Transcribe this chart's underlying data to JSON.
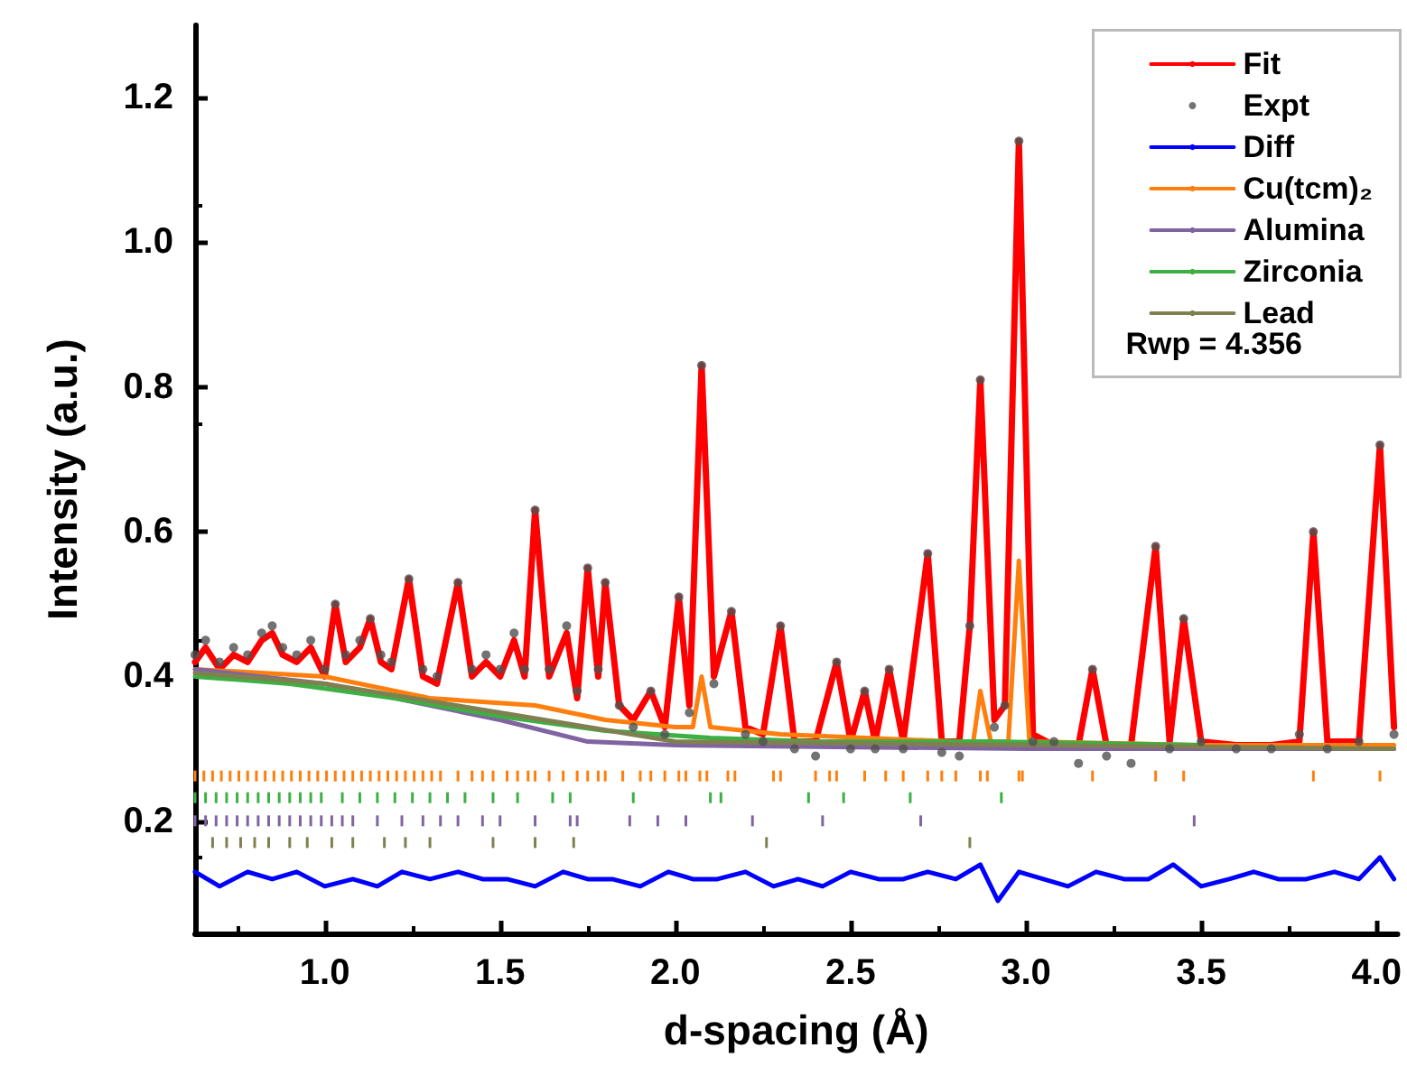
{
  "chart_data": {
    "type": "line",
    "xlabel": "d-spacing (Å)",
    "ylabel": "Intensity (a.u.)",
    "xlim": [
      0.63,
      4.06
    ],
    "ylim": [
      0.045,
      1.3
    ],
    "xticks": [
      {
        "value": 1,
        "label": "1.0"
      },
      {
        "value": 1.5,
        "label": "1.5"
      },
      {
        "value": 2,
        "label": "2.0"
      },
      {
        "value": 2.5,
        "label": "2.5"
      },
      {
        "value": 3,
        "label": "3.0"
      },
      {
        "value": 3.5,
        "label": "3.5"
      },
      {
        "value": 4,
        "label": "4.0"
      }
    ],
    "yticks": [
      {
        "value": 0.2,
        "label": "0.2"
      },
      {
        "value": 0.4,
        "label": "0.4"
      },
      {
        "value": 0.6,
        "label": "0.6"
      },
      {
        "value": 0.8,
        "label": "0.8"
      },
      {
        "value": 1,
        "label": "1.0"
      },
      {
        "value": 1.2,
        "label": "1.2"
      }
    ],
    "grid": false,
    "legend": "top right",
    "annotations": [
      "Rwp = 4.356"
    ],
    "series": [
      {
        "name": "Expt",
        "type": "scatter",
        "marker": "circle",
        "color": "#505050",
        "x": [
          0.63,
          0.66,
          0.7,
          0.74,
          0.78,
          0.82,
          0.85,
          0.88,
          0.92,
          0.96,
          1.0,
          1.03,
          1.06,
          1.1,
          1.13,
          1.16,
          1.19,
          1.24,
          1.28,
          1.32,
          1.38,
          1.42,
          1.46,
          1.5,
          1.54,
          1.57,
          1.6,
          1.64,
          1.69,
          1.72,
          1.75,
          1.78,
          1.8,
          1.84,
          1.88,
          1.93,
          1.97,
          2.01,
          2.04,
          2.075,
          2.11,
          2.16,
          2.2,
          2.25,
          2.3,
          2.34,
          2.4,
          2.46,
          2.5,
          2.54,
          2.57,
          2.61,
          2.65,
          2.72,
          2.76,
          2.81,
          2.84,
          2.87,
          2.91,
          2.94,
          2.98,
          3.02,
          3.08,
          3.15,
          3.19,
          3.23,
          3.3,
          3.37,
          3.41,
          3.45,
          3.5,
          3.6,
          3.7,
          3.78,
          3.82,
          3.86,
          3.95,
          4.01,
          4.05
        ],
        "values": [
          0.43,
          0.45,
          0.42,
          0.44,
          0.43,
          0.46,
          0.47,
          0.44,
          0.43,
          0.45,
          0.41,
          0.5,
          0.43,
          0.45,
          0.48,
          0.43,
          0.42,
          0.535,
          0.41,
          0.4,
          0.53,
          0.41,
          0.43,
          0.41,
          0.46,
          0.41,
          0.63,
          0.41,
          0.47,
          0.38,
          0.55,
          0.41,
          0.53,
          0.36,
          0.33,
          0.38,
          0.32,
          0.51,
          0.35,
          0.83,
          0.39,
          0.49,
          0.32,
          0.31,
          0.47,
          0.3,
          0.29,
          0.42,
          0.3,
          0.38,
          0.3,
          0.41,
          0.3,
          0.57,
          0.295,
          0.29,
          0.47,
          0.81,
          0.33,
          0.36,
          1.14,
          0.31,
          0.31,
          0.28,
          0.41,
          0.29,
          0.28,
          0.58,
          0.3,
          0.48,
          0.31,
          0.3,
          0.3,
          0.32,
          0.6,
          0.3,
          0.31,
          0.72,
          0.32
        ]
      },
      {
        "name": "Fit",
        "color": "#ff0000",
        "x": [
          0.63,
          0.66,
          0.7,
          0.74,
          0.78,
          0.82,
          0.85,
          0.88,
          0.92,
          0.96,
          1.0,
          1.03,
          1.06,
          1.1,
          1.13,
          1.16,
          1.19,
          1.24,
          1.28,
          1.32,
          1.38,
          1.42,
          1.46,
          1.5,
          1.54,
          1.57,
          1.6,
          1.64,
          1.69,
          1.72,
          1.75,
          1.78,
          1.8,
          1.84,
          1.88,
          1.93,
          1.97,
          2.01,
          2.04,
          2.075,
          2.11,
          2.16,
          2.2,
          2.25,
          2.3,
          2.34,
          2.4,
          2.46,
          2.5,
          2.54,
          2.57,
          2.61,
          2.65,
          2.72,
          2.76,
          2.81,
          2.84,
          2.87,
          2.91,
          2.94,
          2.98,
          3.02,
          3.08,
          3.15,
          3.19,
          3.23,
          3.3,
          3.37,
          3.41,
          3.45,
          3.5,
          3.6,
          3.7,
          3.78,
          3.82,
          3.86,
          3.95,
          4.01,
          4.05
        ],
        "values": [
          0.42,
          0.44,
          0.41,
          0.43,
          0.42,
          0.45,
          0.46,
          0.43,
          0.42,
          0.44,
          0.4,
          0.5,
          0.42,
          0.44,
          0.48,
          0.42,
          0.41,
          0.535,
          0.4,
          0.39,
          0.53,
          0.4,
          0.42,
          0.4,
          0.45,
          0.4,
          0.63,
          0.4,
          0.46,
          0.37,
          0.55,
          0.4,
          0.53,
          0.36,
          0.34,
          0.38,
          0.33,
          0.51,
          0.36,
          0.83,
          0.4,
          0.49,
          0.33,
          0.32,
          0.47,
          0.31,
          0.31,
          0.42,
          0.31,
          0.38,
          0.31,
          0.41,
          0.31,
          0.57,
          0.31,
          0.31,
          0.47,
          0.81,
          0.34,
          0.36,
          1.14,
          0.32,
          0.305,
          0.305,
          0.41,
          0.305,
          0.305,
          0.58,
          0.31,
          0.48,
          0.31,
          0.305,
          0.305,
          0.31,
          0.6,
          0.31,
          0.31,
          0.72,
          0.33
        ]
      },
      {
        "name": "Diff",
        "color": "#0000ff",
        "x": [
          0.63,
          0.7,
          0.78,
          0.85,
          0.92,
          1.0,
          1.08,
          1.15,
          1.22,
          1.3,
          1.38,
          1.45,
          1.52,
          1.6,
          1.68,
          1.75,
          1.82,
          1.9,
          1.98,
          2.05,
          2.12,
          2.2,
          2.28,
          2.35,
          2.42,
          2.5,
          2.58,
          2.65,
          2.72,
          2.8,
          2.87,
          2.92,
          2.98,
          3.05,
          3.12,
          3.2,
          3.28,
          3.35,
          3.42,
          3.5,
          3.58,
          3.65,
          3.72,
          3.8,
          3.88,
          3.95,
          4.01,
          4.05
        ],
        "values": [
          0.13,
          0.11,
          0.13,
          0.12,
          0.13,
          0.11,
          0.12,
          0.11,
          0.13,
          0.12,
          0.13,
          0.12,
          0.12,
          0.11,
          0.13,
          0.12,
          0.12,
          0.11,
          0.13,
          0.12,
          0.12,
          0.13,
          0.11,
          0.12,
          0.11,
          0.13,
          0.12,
          0.12,
          0.13,
          0.12,
          0.14,
          0.09,
          0.13,
          0.12,
          0.11,
          0.13,
          0.12,
          0.12,
          0.14,
          0.11,
          0.12,
          0.13,
          0.12,
          0.12,
          0.13,
          0.12,
          0.15,
          0.12
        ]
      },
      {
        "name": "Cu(tcm)₂",
        "color": "#ff7f0e",
        "x": [
          0.63,
          1.0,
          1.3,
          1.6,
          1.8,
          2.0,
          2.05,
          2.075,
          2.1,
          2.3,
          2.8,
          2.85,
          2.87,
          2.9,
          2.95,
          2.98,
          3.01,
          3.5,
          4.05
        ],
        "values": [
          0.41,
          0.4,
          0.37,
          0.36,
          0.34,
          0.33,
          0.33,
          0.4,
          0.33,
          0.32,
          0.31,
          0.31,
          0.38,
          0.31,
          0.31,
          0.56,
          0.31,
          0.305,
          0.305
        ]
      },
      {
        "name": "Alumina",
        "color": "#8064a2",
        "x": [
          0.63,
          1.0,
          1.5,
          1.75,
          2.0,
          3.0,
          4.05
        ],
        "values": [
          0.41,
          0.39,
          0.34,
          0.31,
          0.305,
          0.3,
          0.3
        ]
      },
      {
        "name": "Zirconia",
        "color": "#3cb043",
        "x": [
          0.63,
          0.9,
          1.2,
          1.5,
          1.8,
          2.1,
          2.4,
          2.9,
          3.5
        ],
        "values": [
          0.4,
          0.39,
          0.37,
          0.345,
          0.325,
          0.315,
          0.31,
          0.31,
          0.305
        ]
      },
      {
        "name": "Lead",
        "color": "#7f8050",
        "x": [
          0.63,
          1.0,
          1.5,
          2.0,
          4.05
        ],
        "values": [
          0.405,
          0.39,
          0.35,
          0.31,
          0.3
        ]
      },
      {
        "type": "bar",
        "color": "#ff7f0e",
        "x": [
          0.63,
          0.655,
          0.68,
          0.705,
          0.73,
          0.755,
          0.78,
          0.805,
          0.83,
          0.855,
          0.88,
          0.905,
          0.93,
          0.955,
          0.98,
          1.005,
          1.03,
          1.055,
          1.08,
          1.105,
          1.13,
          1.155,
          1.18,
          1.205,
          1.23,
          1.255,
          1.28,
          1.305,
          1.33,
          1.38,
          1.42,
          1.45,
          1.48,
          1.52,
          1.55,
          1.58,
          1.6,
          1.64,
          1.68,
          1.72,
          1.75,
          1.78,
          1.8,
          1.85,
          1.9,
          1.93,
          1.97,
          2.01,
          2.03,
          2.07,
          2.09,
          2.15,
          2.17,
          2.28,
          2.3,
          2.4,
          2.44,
          2.46,
          2.54,
          2.6,
          2.65,
          2.72,
          2.76,
          2.8,
          2.87,
          2.89,
          2.98,
          2.99,
          3.19,
          3.37,
          3.45,
          3.82,
          4.01
        ],
        "base": [
          0.255,
          0.255,
          0.255,
          0.255,
          0.255,
          0.255,
          0.255,
          0.255,
          0.255,
          0.255,
          0.255,
          0.255,
          0.255,
          0.255,
          0.255,
          0.255,
          0.255,
          0.255,
          0.255,
          0.255,
          0.255,
          0.255,
          0.255,
          0.255,
          0.255,
          0.255,
          0.255,
          0.255,
          0.255,
          0.255,
          0.255,
          0.255,
          0.255,
          0.255,
          0.255,
          0.255,
          0.255,
          0.255,
          0.255,
          0.255,
          0.255,
          0.255,
          0.255,
          0.255,
          0.255,
          0.255,
          0.255,
          0.255,
          0.255,
          0.255,
          0.255,
          0.255,
          0.255,
          0.255,
          0.255,
          0.255,
          0.255,
          0.255,
          0.255,
          0.255,
          0.255,
          0.255,
          0.255,
          0.255,
          0.255,
          0.255,
          0.255,
          0.255,
          0.255,
          0.255,
          0.255,
          0.255,
          0.255
        ],
        "values": [
          0.015,
          0.015,
          0.015,
          0.015,
          0.015,
          0.015,
          0.015,
          0.015,
          0.015,
          0.015,
          0.015,
          0.015,
          0.015,
          0.015,
          0.015,
          0.015,
          0.015,
          0.015,
          0.015,
          0.015,
          0.015,
          0.015,
          0.015,
          0.015,
          0.015,
          0.015,
          0.015,
          0.015,
          0.015,
          0.015,
          0.015,
          0.015,
          0.015,
          0.015,
          0.015,
          0.015,
          0.015,
          0.015,
          0.015,
          0.015,
          0.015,
          0.015,
          0.015,
          0.015,
          0.015,
          0.015,
          0.015,
          0.015,
          0.015,
          0.015,
          0.015,
          0.015,
          0.015,
          0.015,
          0.015,
          0.015,
          0.015,
          0.015,
          0.015,
          0.015,
          0.015,
          0.015,
          0.015,
          0.015,
          0.015,
          0.015,
          0.015,
          0.015,
          0.015,
          0.015,
          0.015,
          0.015,
          0.015
        ]
      },
      {
        "type": "bar",
        "color": "#3cb043",
        "x": [
          0.63,
          0.66,
          0.69,
          0.72,
          0.75,
          0.78,
          0.81,
          0.84,
          0.87,
          0.9,
          0.93,
          0.96,
          0.99,
          1.05,
          1.1,
          1.15,
          1.2,
          1.25,
          1.3,
          1.35,
          1.4,
          1.48,
          1.55,
          1.65,
          1.7,
          1.88,
          2.1,
          2.13,
          2.38,
          2.48,
          2.67,
          2.93
        ],
        "base": [
          0.225,
          0.225,
          0.225,
          0.225,
          0.225,
          0.225,
          0.225,
          0.225,
          0.225,
          0.225,
          0.225,
          0.225,
          0.225,
          0.225,
          0.225,
          0.225,
          0.225,
          0.225,
          0.225,
          0.225,
          0.225,
          0.225,
          0.225,
          0.225,
          0.225,
          0.225,
          0.225,
          0.225,
          0.225,
          0.225,
          0.225,
          0.225
        ],
        "values": [
          0.015,
          0.015,
          0.015,
          0.015,
          0.015,
          0.015,
          0.015,
          0.015,
          0.015,
          0.015,
          0.015,
          0.015,
          0.015,
          0.015,
          0.015,
          0.015,
          0.015,
          0.015,
          0.015,
          0.015,
          0.015,
          0.015,
          0.015,
          0.015,
          0.015,
          0.015,
          0.015,
          0.015,
          0.015,
          0.015,
          0.015,
          0.015
        ]
      },
      {
        "type": "bar",
        "color": "#8064a2",
        "x": [
          0.63,
          0.66,
          0.69,
          0.72,
          0.75,
          0.78,
          0.81,
          0.84,
          0.87,
          0.9,
          0.93,
          0.96,
          0.99,
          1.02,
          1.05,
          1.08,
          1.15,
          1.22,
          1.28,
          1.33,
          1.38,
          1.45,
          1.5,
          1.6,
          1.7,
          1.72,
          1.87,
          1.95,
          2.03,
          2.22,
          2.42,
          2.7,
          3.48
        ],
        "base": [
          0.193,
          0.193,
          0.193,
          0.193,
          0.193,
          0.193,
          0.193,
          0.193,
          0.193,
          0.193,
          0.193,
          0.193,
          0.193,
          0.193,
          0.193,
          0.193,
          0.193,
          0.193,
          0.193,
          0.193,
          0.193,
          0.193,
          0.193,
          0.193,
          0.193,
          0.193,
          0.193,
          0.193,
          0.193,
          0.193,
          0.193,
          0.193,
          0.193
        ],
        "values": [
          0.015,
          0.015,
          0.015,
          0.015,
          0.015,
          0.015,
          0.015,
          0.015,
          0.015,
          0.015,
          0.015,
          0.015,
          0.015,
          0.015,
          0.015,
          0.015,
          0.015,
          0.015,
          0.015,
          0.015,
          0.015,
          0.015,
          0.015,
          0.015,
          0.015,
          0.015,
          0.015,
          0.015,
          0.015,
          0.015,
          0.015,
          0.015,
          0.015
        ]
      },
      {
        "type": "bar",
        "color": "#7f8050",
        "x": [
          0.68,
          0.72,
          0.76,
          0.8,
          0.84,
          0.9,
          0.95,
          1.02,
          1.08,
          1.17,
          1.23,
          1.3,
          1.48,
          1.6,
          1.71,
          2.26,
          2.84
        ],
        "base": [
          0.163,
          0.163,
          0.163,
          0.163,
          0.163,
          0.163,
          0.163,
          0.163,
          0.163,
          0.163,
          0.163,
          0.163,
          0.163,
          0.163,
          0.163,
          0.163,
          0.163
        ],
        "values": [
          0.015,
          0.015,
          0.015,
          0.015,
          0.015,
          0.015,
          0.015,
          0.015,
          0.015,
          0.015,
          0.015,
          0.015,
          0.015,
          0.015,
          0.015,
          0.015,
          0.015
        ]
      }
    ]
  }
}
